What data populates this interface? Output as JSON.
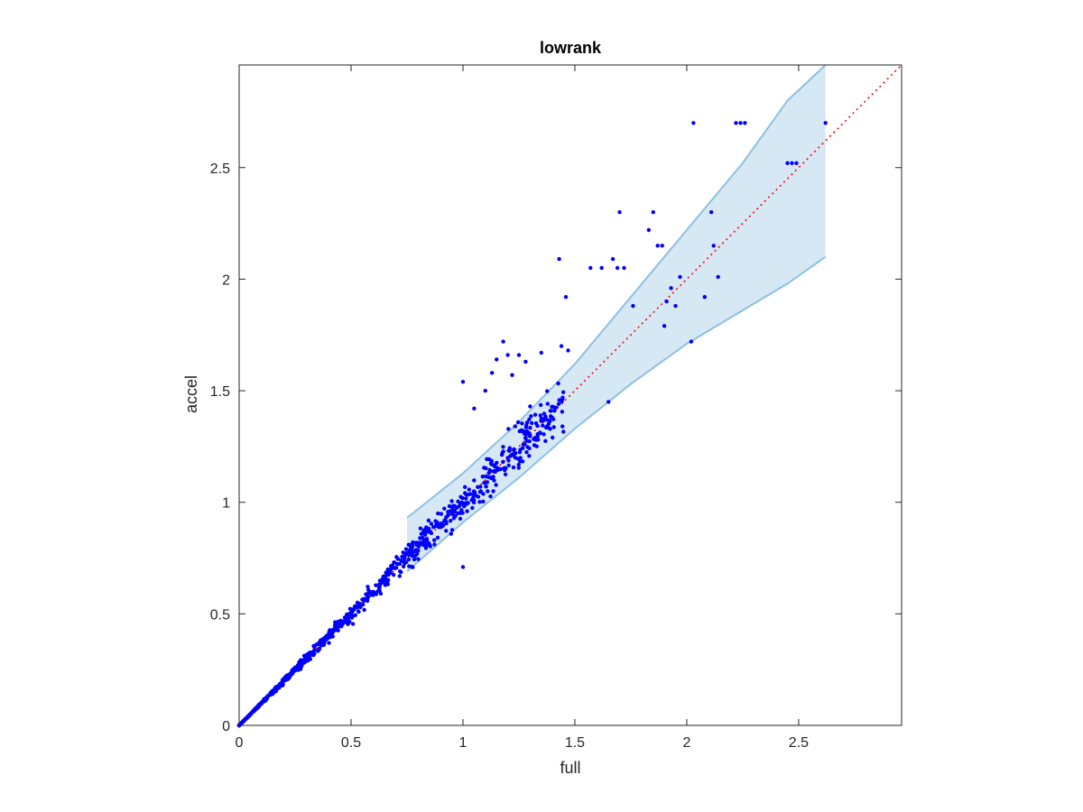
{
  "chart_data": {
    "type": "scatter",
    "title": "lowrank",
    "xlabel": "full",
    "ylabel": "accel",
    "xlim": [
      0,
      2.96
    ],
    "ylim": [
      0,
      2.96
    ],
    "xticks": [
      0,
      0.5,
      1,
      1.5,
      2,
      2.5
    ],
    "yticks": [
      0,
      0.5,
      1,
      1.5,
      2,
      2.5
    ],
    "xtick_labels": [
      "0",
      "0.5",
      "1",
      "1.5",
      "2",
      "2.5"
    ],
    "ytick_labels": [
      "0",
      "0.5",
      "1",
      "1.5",
      "2",
      "2.5"
    ],
    "grid": false,
    "colors": {
      "points": "#0000ff",
      "band_fill": "#d6e8f4",
      "band_edge": "#8cc1e2",
      "reference_line": "#ff0000",
      "axes": "#262626"
    },
    "reference_line": {
      "x": [
        0,
        2.96
      ],
      "y": [
        0,
        2.96
      ],
      "style": "dotted"
    },
    "band": {
      "x": [
        0.75,
        1.0,
        1.25,
        1.5,
        1.75,
        2.0,
        2.25,
        2.45,
        2.62
      ],
      "upper": [
        0.93,
        1.13,
        1.36,
        1.62,
        1.92,
        2.22,
        2.52,
        2.8,
        2.96
      ],
      "lower": [
        0.69,
        0.91,
        1.11,
        1.33,
        1.53,
        1.71,
        1.86,
        1.98,
        2.1
      ]
    },
    "highlighted_points": {
      "x": [
        1.0,
        1.05,
        1.1,
        1.15,
        1.2,
        1.25,
        1.3,
        1.35,
        1.4,
        1.43,
        1.44,
        1.46,
        1.57,
        1.62,
        1.67,
        1.69,
        1.72,
        1.76,
        1.83,
        1.85,
        1.87,
        1.89,
        1.9,
        1.91,
        1.93,
        1.95,
        1.97,
        2.02,
        2.03,
        2.08,
        2.11,
        2.12,
        2.14,
        2.22,
        2.24,
        2.26,
        2.45,
        2.47,
        2.49,
        2.62,
        1.7,
        1.65,
        1.47,
        1.28,
        1.22,
        1.18,
        1.13,
        1.0
      ],
      "y": [
        1.54,
        1.42,
        1.5,
        1.64,
        1.66,
        1.66,
        1.43,
        1.67,
        1.29,
        2.09,
        1.7,
        1.92,
        2.05,
        2.05,
        2.09,
        2.05,
        2.05,
        1.88,
        2.22,
        2.3,
        2.15,
        2.15,
        1.79,
        1.9,
        1.96,
        1.88,
        2.01,
        1.72,
        2.7,
        1.92,
        2.3,
        2.15,
        2.01,
        2.7,
        2.7,
        2.7,
        2.52,
        2.52,
        2.52,
        2.7,
        2.3,
        1.45,
        1.68,
        1.63,
        1.57,
        1.72,
        1.58,
        0.71
      ]
    },
    "cloud": {
      "n": 900,
      "x_max": 1.45,
      "spread_factor": 0.065,
      "seed": 12345
    }
  }
}
